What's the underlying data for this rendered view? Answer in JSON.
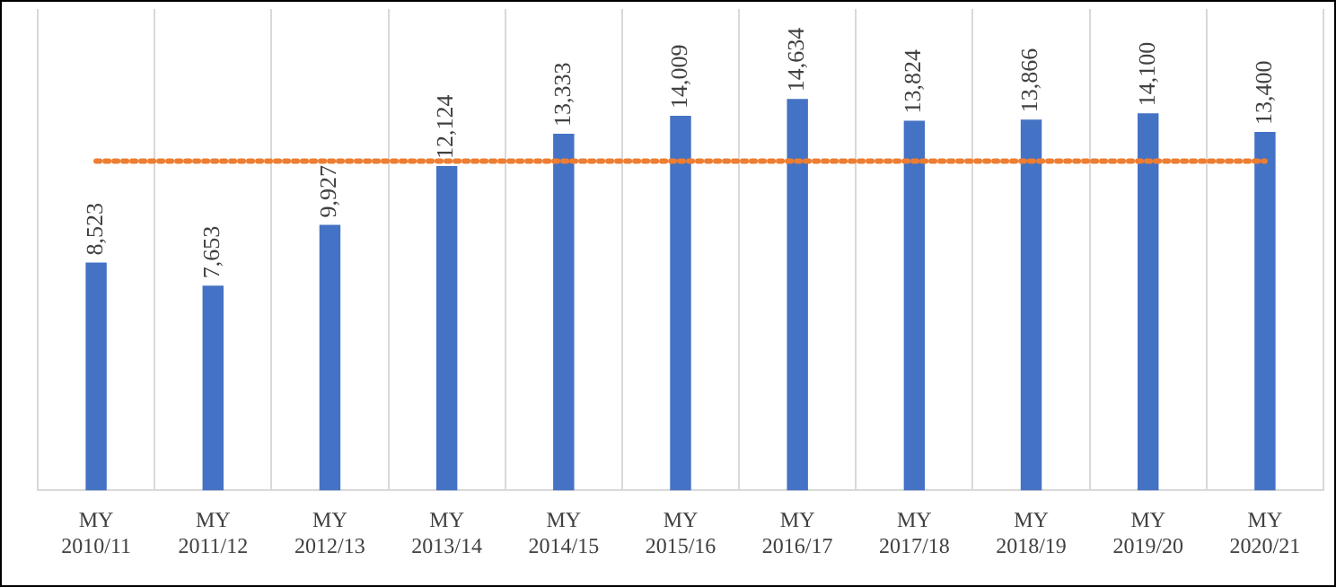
{
  "chart_data": {
    "type": "bar",
    "categories": [
      "MY 2010/11",
      "MY 2011/12",
      "MY 2012/13",
      "MY 2013/14",
      "MY 2014/15",
      "MY 2015/16",
      "MY 2016/17",
      "MY 2017/18",
      "MY 2018/19",
      "MY 2019/20",
      "MY 2020/21"
    ],
    "series": [
      {
        "color": "#4472c4",
        "values": [
          8523,
          7653,
          9927,
          12124,
          13333,
          14009,
          14634,
          13824,
          13866,
          14100,
          13400
        ],
        "value_labels": [
          "8,523",
          "7,653",
          "9,927",
          "12,124",
          "13,333",
          "14,009",
          "14,634",
          "13,824",
          "13,866",
          "14,100",
          "13,400"
        ]
      },
      {
        "type": "line",
        "color": "#ed7d31",
        "line_style": "dotted",
        "marker": "none",
        "values": [
          12308,
          12308,
          12308,
          12308,
          12308,
          12308,
          12308,
          12308,
          12308,
          12308,
          12308
        ]
      }
    ],
    "grid": "x",
    "legend": false
  }
}
